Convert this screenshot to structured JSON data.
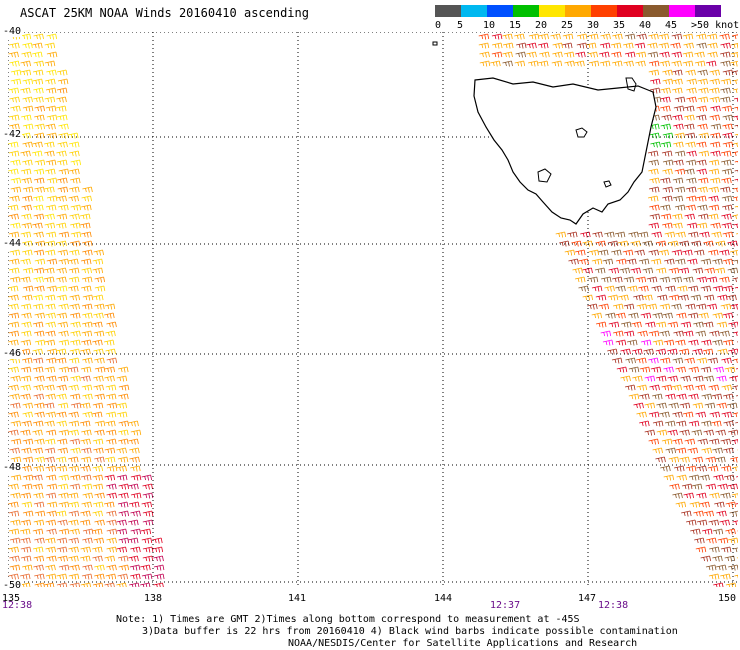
{
  "title": "ASCAT 25KM NOAA Winds 20160410 ascending",
  "scale": {
    "colors": [
      "#555555",
      "#00b8f0",
      "#0050ff",
      "#00c000",
      "#ffe600",
      "#ffa800",
      "#ff4000",
      "#e00020",
      "#8a5a2e",
      "#ff00ff",
      "#6a00a8"
    ],
    "labels": [
      "0",
      "5",
      "10",
      "15",
      "20",
      "25",
      "30",
      "35",
      "40",
      "45",
      ">50 knots"
    ]
  },
  "axes": {
    "lat_labels": [
      "-40",
      "-42",
      "-44",
      "-46",
      "-48",
      "-50"
    ],
    "lon_labels": [
      "135",
      "138",
      "141",
      "144",
      "147",
      "150"
    ]
  },
  "times": [
    "12:38",
    "12:37",
    "12:38"
  ],
  "notes": {
    "line1": "Note: 1) Times are GMT 2)Times along bottom correspond to measurement at -45S",
    "line2": "3)Data buffer is 22 hrs from 20160410 4) Black wind barbs indicate possible contamination",
    "line3": "NOAA/NESDIS/Center for Satellite Applications and Research"
  }
}
